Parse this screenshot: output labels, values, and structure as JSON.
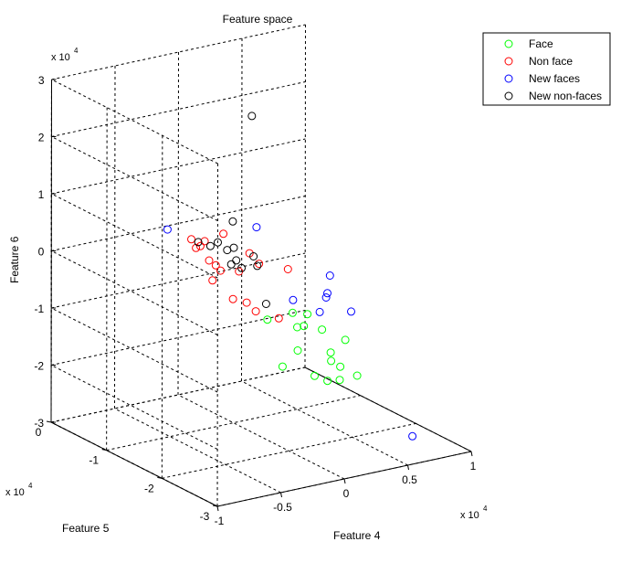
{
  "chart_data": {
    "type": "scatter",
    "title": "Feature space",
    "axes": {
      "x": {
        "label": "Feature 4",
        "multiplier": "x 10",
        "exponent": "4",
        "ticks": [
          -1,
          -0.5,
          0,
          0.5,
          1
        ],
        "tick_labels": [
          "-1",
          "-0.5",
          "0",
          "0.5",
          "1"
        ],
        "range": [
          -1,
          1
        ]
      },
      "y": {
        "label": "Feature 5",
        "multiplier": "x 10",
        "exponent": "4",
        "ticks": [
          -3,
          -2,
          -1,
          0
        ],
        "tick_labels": [
          "-3",
          "-2",
          "-1",
          "0"
        ],
        "range": [
          -3,
          0
        ]
      },
      "z": {
        "label": "Feature 6",
        "multiplier": "x 10",
        "exponent": "4",
        "ticks": [
          -3,
          -2,
          -1,
          0,
          1,
          2,
          3
        ],
        "tick_labels": [
          "-3",
          "-2",
          "-1",
          "0",
          "1",
          "2",
          "3"
        ],
        "range": [
          -3,
          3
        ]
      }
    },
    "grid": true,
    "legend_position": "top-right",
    "series": [
      {
        "name": "Face",
        "color": "#00ff00",
        "marker": "circle",
        "points": [
          [
            0.21,
            -1.85,
            -0.78
          ],
          [
            0.29,
            -1.93,
            -1.05
          ],
          [
            0.35,
            -1.95,
            -1.47
          ],
          [
            0.31,
            -2.05,
            -1.55
          ],
          [
            0.16,
            -1.9,
            -0.94
          ],
          [
            0.13,
            -1.85,
            -0.97
          ],
          [
            0.08,
            -1.88,
            -0.68
          ],
          [
            -0.04,
            -1.7,
            -0.83
          ],
          [
            0.09,
            -1.95,
            -1.31
          ],
          [
            0.4,
            -2.1,
            -1.2
          ],
          [
            0.26,
            -2.1,
            -1.85
          ],
          [
            0.4,
            -2.0,
            -1.95
          ],
          [
            0.08,
            -1.7,
            -1.71
          ],
          [
            0.18,
            -2.05,
            -1.75
          ],
          [
            0.36,
            -2.1,
            -1.65
          ],
          [
            0.45,
            -2.2,
            -1.8
          ]
        ]
      },
      {
        "name": "Non face",
        "color": "#ff0000",
        "marker": "circle",
        "points": [
          [
            -0.3,
            -1.5,
            0.7
          ],
          [
            -0.4,
            -1.15,
            0.48
          ],
          [
            -0.35,
            -1.2,
            0.36
          ],
          [
            -0.36,
            -1.3,
            0.5
          ],
          [
            -0.45,
            -1.35,
            0.45
          ],
          [
            -0.25,
            -1.25,
            0.0
          ],
          [
            -0.15,
            -1.8,
            0.25
          ],
          [
            -0.39,
            -1.45,
            0.25
          ],
          [
            -0.3,
            -1.45,
            0.03
          ],
          [
            -0.32,
            -1.35,
            -0.18
          ],
          [
            -0.05,
            -1.4,
            0.19
          ],
          [
            0.1,
            -1.75,
            0.01
          ],
          [
            -0.22,
            -1.6,
            0.05
          ],
          [
            -0.18,
            -1.4,
            -0.55
          ],
          [
            -0.05,
            -1.35,
            -0.7
          ],
          [
            0.0,
            -1.4,
            -0.85
          ],
          [
            0.05,
            -1.7,
            -0.85
          ]
        ]
      },
      {
        "name": "New faces",
        "color": "#0000ff",
        "marker": "circle",
        "points": [
          [
            -0.17,
            -1.8,
            0.9
          ],
          [
            -0.5,
            -0.95,
            0.6
          ],
          [
            0.22,
            -2.05,
            -0.65
          ],
          [
            0.38,
            -2.25,
            -0.62
          ],
          [
            0.28,
            -2.05,
            -0.35
          ],
          [
            0.3,
            -2.05,
            -0.05
          ],
          [
            0.11,
            -1.82,
            -0.5
          ],
          [
            0.27,
            -2.05,
            -0.42
          ],
          [
            0.58,
            -2.9,
            -2.58
          ]
        ]
      },
      {
        "name": "New non-faces",
        "color": "#000000",
        "marker": "circle",
        "points": [
          [
            -0.23,
            -1.85,
            2.9
          ],
          [
            -0.27,
            -1.6,
            0.95
          ],
          [
            -0.35,
            -1.38,
            0.45
          ],
          [
            -0.3,
            -1.4,
            0.5
          ],
          [
            -0.38,
            -1.23,
            0.46
          ],
          [
            -0.27,
            -1.5,
            0.4
          ],
          [
            -0.26,
            -1.55,
            0.17
          ],
          [
            -0.24,
            -1.55,
            0.45
          ],
          [
            -0.15,
            -1.7,
            0.33
          ],
          [
            -0.22,
            -1.55,
            0.22
          ],
          [
            -0.2,
            -1.6,
            0.1
          ],
          [
            -0.12,
            -1.7,
            0.15
          ],
          [
            -0.05,
            -1.7,
            -0.55
          ]
        ]
      }
    ]
  }
}
